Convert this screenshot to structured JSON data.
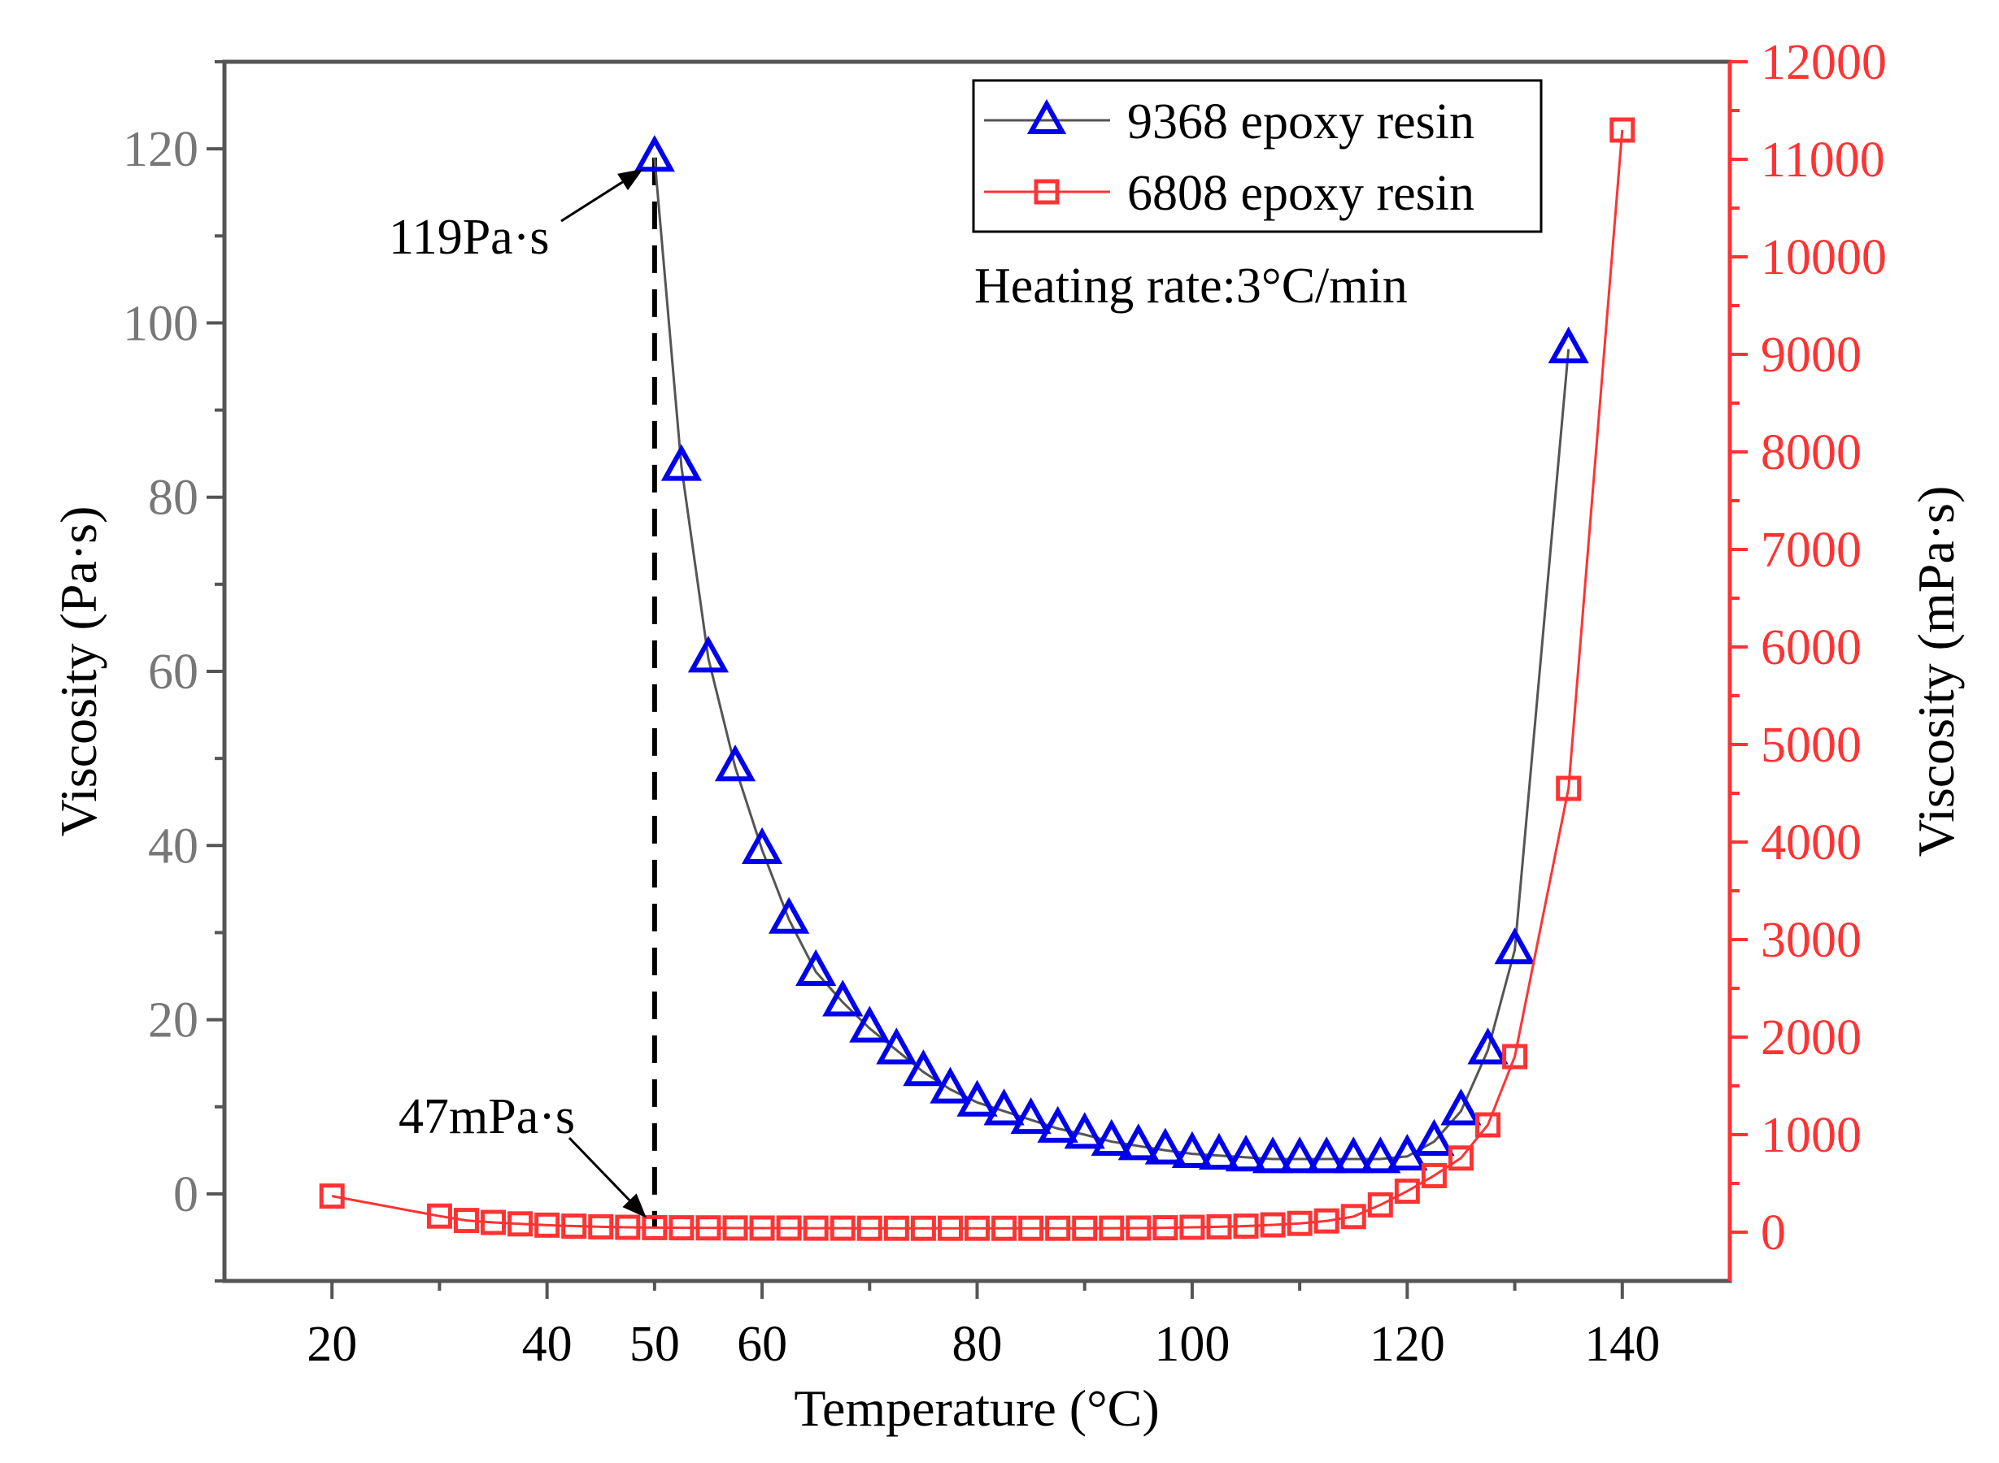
{
  "chart_data": {
    "type": "line",
    "xlabel": "Temperature (°C)",
    "ylabel_left": "Viscosity (Pa·s)",
    "ylabel_right": "Viscosity (mPa·s)",
    "xlim": [
      10,
      150
    ],
    "ylim_left": [
      -10,
      130
    ],
    "ylim_right": [
      -500,
      12000
    ],
    "x_ticks": [
      20,
      40,
      50,
      60,
      80,
      100,
      120,
      140
    ],
    "y_left_ticks": [
      0,
      20,
      40,
      60,
      80,
      100,
      120
    ],
    "y_right_ticks": [
      0,
      1000,
      2000,
      3000,
      4000,
      5000,
      6000,
      7000,
      8000,
      9000,
      10000,
      11000,
      12000
    ],
    "legend_position": "top-right",
    "series": [
      {
        "name": "9368 epoxy resin",
        "axis": "left",
        "color": "#0000ee",
        "line_color": "#555555",
        "marker": "triangle",
        "x": [
          50,
          52.5,
          55,
          57.5,
          60,
          62.5,
          65,
          67.5,
          70,
          72.5,
          75,
          77.5,
          80,
          82.5,
          85,
          87.5,
          90,
          92.5,
          95,
          97.5,
          100,
          102.5,
          105,
          107.5,
          110,
          112.5,
          115,
          117.5,
          120,
          122.5,
          125,
          127.5,
          130,
          135
        ],
        "values": [
          119,
          83.5,
          61.5,
          49,
          39.5,
          31.5,
          25.5,
          22,
          19,
          16.5,
          14,
          12,
          10.5,
          9.5,
          8.5,
          7.5,
          6.8,
          6,
          5.5,
          5,
          4.6,
          4.4,
          4.2,
          4,
          4,
          4,
          4,
          4,
          4.3,
          6,
          9.5,
          16.5,
          28,
          97
        ]
      },
      {
        "name": "6808 epoxy resin",
        "axis": "right",
        "color": "#ff3333",
        "line_color": "#ff3333",
        "marker": "square",
        "x": [
          20,
          30,
          32.5,
          35,
          37.5,
          40,
          42.5,
          45,
          47.5,
          50,
          52.5,
          55,
          57.5,
          60,
          62.5,
          65,
          67.5,
          70,
          72.5,
          75,
          77.5,
          80,
          82.5,
          85,
          87.5,
          90,
          92.5,
          95,
          97.5,
          100,
          102.5,
          105,
          107.5,
          110,
          112.5,
          115,
          117.5,
          120,
          122.5,
          125,
          127.5,
          130,
          135,
          140
        ],
        "values": [
          370,
          165,
          120,
          100,
          85,
          72,
          62,
          55,
          50,
          47,
          45,
          44,
          43,
          42,
          42,
          41,
          41,
          40,
          40,
          40,
          40,
          40,
          40,
          40,
          40,
          40,
          41,
          42,
          45,
          50,
          55,
          62,
          75,
          90,
          115,
          160,
          280,
          420,
          580,
          760,
          1100,
          1800,
          4550,
          11300
        ]
      }
    ],
    "annotations": {
      "peak_label": "119Pa·s",
      "min_label": "47mPa·s",
      "heating_rate": "Heating rate:3°C/min",
      "reference_x": 50
    }
  }
}
